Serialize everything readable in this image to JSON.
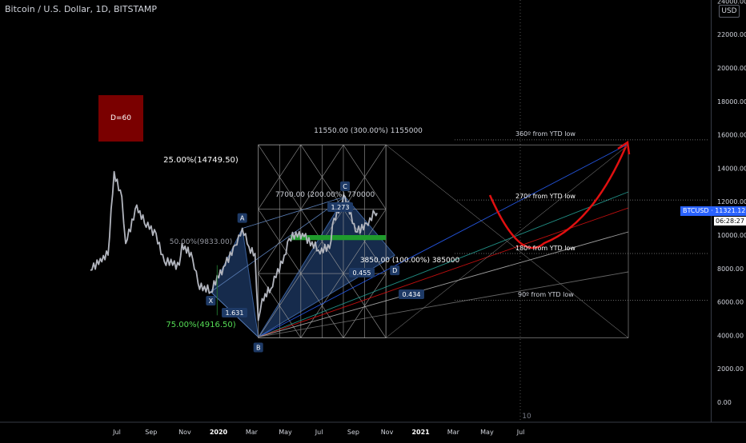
{
  "header": {
    "title": "Bitcoin / U.S. Dollar, 1D, BITSTAMP"
  },
  "currency_badge": "USD",
  "last_price_label": "BTCUSD · 11321.12",
  "countdown": "06:28:27",
  "d_box_label": "D=60",
  "bottom_marker": "10",
  "colors": {
    "background": "#000000",
    "candles": "#b2b5be",
    "pattern_fill": "#1e3a66",
    "gann_lines": "#9a9a9a",
    "arrow": "#e01010",
    "green_zone": "#1f9b2c",
    "last_price_bg": "#2962ff",
    "fib_75": "#55dd55",
    "d_box": "#7a0000"
  },
  "chart_data": {
    "type": "candlestick",
    "title": "Bitcoin / U.S. Dollar, 1D, BITSTAMP",
    "ylabel": "USD",
    "ylim": [
      -1000,
      24000
    ],
    "y_ticks": [
      0,
      2000,
      4000,
      6000,
      8000,
      10000,
      12000,
      14000,
      16000,
      18000,
      20000,
      22000,
      24000
    ],
    "y_tick_labels": [
      "0.00",
      "2000.00",
      "4000.00",
      "6000.00",
      "8000.00",
      "10000.00",
      "12000.00",
      "14000.00",
      "16000.00",
      "18000.00",
      "20000.00",
      "22000.00",
      "24000.00"
    ],
    "x_tick_labels": [
      "Jul",
      "Sep",
      "Nov",
      "2020",
      "Mar",
      "May",
      "Jul",
      "Sep",
      "Nov",
      "2021",
      "Mar",
      "May",
      "Jul"
    ],
    "price_path": [
      {
        "date": "2019-05-14",
        "close": 7900
      },
      {
        "date": "2019-06-01",
        "close": 8600
      },
      {
        "date": "2019-06-15",
        "close": 8800
      },
      {
        "date": "2019-06-26",
        "close": 13800
      },
      {
        "date": "2019-07-10",
        "close": 12300
      },
      {
        "date": "2019-07-17",
        "close": 9500
      },
      {
        "date": "2019-08-06",
        "close": 11800
      },
      {
        "date": "2019-08-20",
        "close": 10700
      },
      {
        "date": "2019-09-10",
        "close": 10100
      },
      {
        "date": "2019-09-25",
        "close": 8400
      },
      {
        "date": "2019-10-22",
        "close": 8200
      },
      {
        "date": "2019-10-27",
        "close": 9500
      },
      {
        "date": "2019-11-15",
        "close": 8600
      },
      {
        "date": "2019-11-25",
        "close": 7100
      },
      {
        "date": "2019-12-18",
        "close": 6600
      },
      {
        "date": "2020-01-10",
        "close": 8100
      },
      {
        "date": "2020-01-31",
        "close": 9400
      },
      {
        "date": "2020-02-13",
        "close": 10400
      },
      {
        "date": "2020-02-25",
        "close": 9300
      },
      {
        "date": "2020-03-07",
        "close": 8900
      },
      {
        "date": "2020-03-13",
        "close": 4900
      },
      {
        "date": "2020-03-20",
        "close": 6200
      },
      {
        "date": "2020-04-05",
        "close": 6800
      },
      {
        "date": "2020-04-29",
        "close": 8800
      },
      {
        "date": "2020-05-08",
        "close": 9800
      },
      {
        "date": "2020-06-01",
        "close": 10100
      },
      {
        "date": "2020-06-30",
        "close": 9100
      },
      {
        "date": "2020-07-20",
        "close": 9200
      },
      {
        "date": "2020-07-28",
        "close": 11000
      },
      {
        "date": "2020-08-17",
        "close": 12300
      },
      {
        "date": "2020-09-05",
        "close": 10200
      },
      {
        "date": "2020-09-25",
        "close": 10700
      },
      {
        "date": "2020-10-10",
        "close": 11300
      },
      {
        "date": "2020-10-14",
        "close": 11321.12
      }
    ],
    "pattern_points": [
      {
        "label": "X",
        "date": "2019-12-18",
        "value": 6600
      },
      {
        "label": "A",
        "date": "2020-02-13",
        "value": 10400
      },
      {
        "label": "B",
        "date": "2020-03-13",
        "value": 3900
      },
      {
        "label": "C",
        "date": "2020-08-17",
        "value": 12300
      },
      {
        "label": "D",
        "date": "2020-11-15",
        "value": 8800
      }
    ],
    "ratios": [
      "1.631",
      "1.273",
      "0.455",
      "0.434"
    ],
    "annotations": [
      "25.00%(14749.50)",
      "50.00%(9833.00)",
      "75.00%(4916.50)",
      "11550.00 (300.00%) 1155000",
      "7700.00 (200.00%) 770000",
      "3850.00 (100.00%) 385000",
      "360º from YTD low",
      "270º from YTD low",
      "180º from YTD low",
      "90º from YTD low"
    ],
    "gann_box": {
      "from": "2020-03-13",
      "to": "2020-10-30",
      "low": 3850,
      "high": 15400
    },
    "gann_levels": [
      3850,
      7700,
      11550,
      15400
    ],
    "green_zone": {
      "from": "2020-05-10",
      "to": "2020-10-30",
      "low": 9700,
      "high": 10000
    },
    "last_price": 11321.12
  }
}
